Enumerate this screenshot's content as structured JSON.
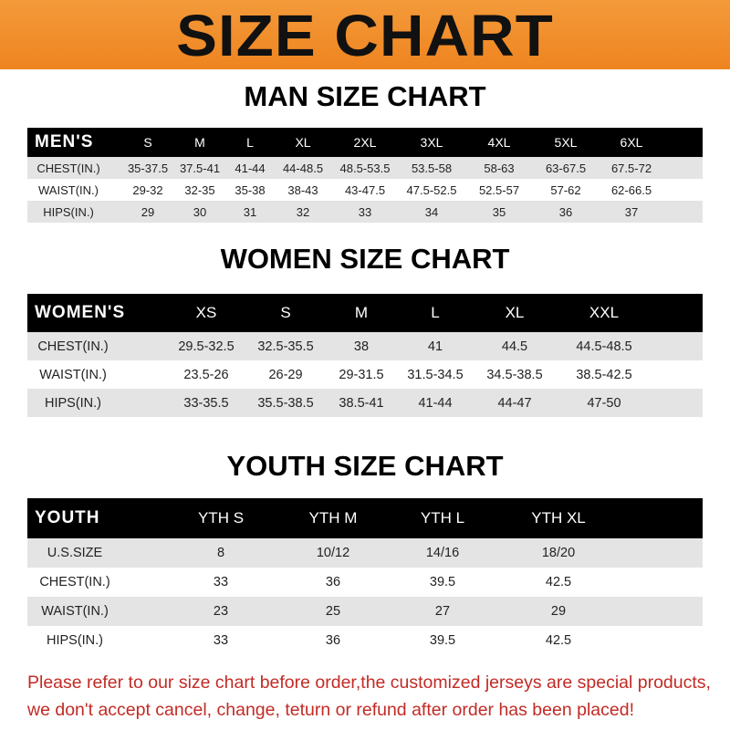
{
  "title": "SIZE CHART",
  "colors": {
    "banner": "#f08a24",
    "footer_text": "#c22b25"
  },
  "men": {
    "title": "MAN SIZE CHART",
    "header": [
      "MEN'S",
      "S",
      "M",
      "L",
      "XL",
      "2XL",
      "3XL",
      "4XL",
      "5XL",
      "6XL"
    ],
    "rows": [
      [
        "CHEST(IN.)",
        "35-37.5",
        "37.5-41",
        "41-44",
        "44-48.5",
        "48.5-53.5",
        "53.5-58",
        "58-63",
        "63-67.5",
        "67.5-72"
      ],
      [
        "WAIST(IN.)",
        "29-32",
        "32-35",
        "35-38",
        "38-43",
        "43-47.5",
        "47.5-52.5",
        "52.5-57",
        "57-62",
        "62-66.5"
      ],
      [
        "HIPS(IN.)",
        "29",
        "30",
        "31",
        "32",
        "33",
        "34",
        "35",
        "36",
        "37"
      ]
    ]
  },
  "women": {
    "title": "WOMEN SIZE CHART",
    "header": [
      "WOMEN'S",
      "XS",
      "S",
      "M",
      "L",
      "XL",
      "XXL"
    ],
    "rows": [
      [
        "CHEST(IN.)",
        "29.5-32.5",
        "32.5-35.5",
        "38",
        "41",
        "44.5",
        "44.5-48.5"
      ],
      [
        "WAIST(IN.)",
        "23.5-26",
        "26-29",
        "29-31.5",
        "31.5-34.5",
        "34.5-38.5",
        "38.5-42.5"
      ],
      [
        "HIPS(IN.)",
        "33-35.5",
        "35.5-38.5",
        "38.5-41",
        "41-44",
        "44-47",
        "47-50"
      ]
    ]
  },
  "youth": {
    "title": "YOUTH SIZE CHART",
    "header": [
      "YOUTH",
      "YTH S",
      "YTH M",
      "YTH L",
      "YTH XL"
    ],
    "rows": [
      [
        "U.S.SIZE",
        "8",
        "10/12",
        "14/16",
        "18/20"
      ],
      [
        "CHEST(IN.)",
        "33",
        "36",
        "39.5",
        "42.5"
      ],
      [
        "WAIST(IN.)",
        "23",
        "25",
        "27",
        "29"
      ],
      [
        "HIPS(IN.)",
        "33",
        "36",
        "39.5",
        "42.5"
      ]
    ]
  },
  "footer": {
    "line1": "Please refer to our size chart before order,the customized jerseys are special products,",
    "line2": "we don't accept cancel, change, teturn or refund after order has been placed!"
  }
}
